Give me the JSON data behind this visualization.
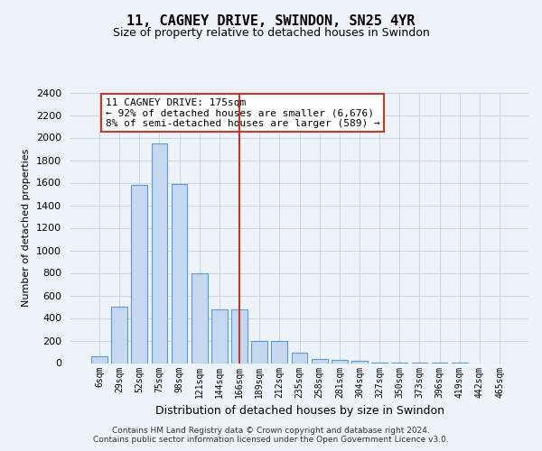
{
  "title": "11, CAGNEY DRIVE, SWINDON, SN25 4YR",
  "subtitle": "Size of property relative to detached houses in Swindon",
  "xlabel": "Distribution of detached houses by size in Swindon",
  "ylabel": "Number of detached properties",
  "categories": [
    "6sqm",
    "29sqm",
    "52sqm",
    "75sqm",
    "98sqm",
    "121sqm",
    "144sqm",
    "166sqm",
    "189sqm",
    "212sqm",
    "235sqm",
    "258sqm",
    "281sqm",
    "304sqm",
    "327sqm",
    "350sqm",
    "373sqm",
    "396sqm",
    "419sqm",
    "442sqm",
    "465sqm"
  ],
  "values": [
    60,
    500,
    1580,
    1950,
    1590,
    800,
    480,
    480,
    200,
    195,
    90,
    35,
    25,
    22,
    3,
    3,
    2,
    1,
    1,
    0,
    0
  ],
  "highlight_index": 7,
  "bar_color": "#c5d8f0",
  "bar_edge_color": "#5b9bd5",
  "highlight_line_color": "#c0392b",
  "annotation_text": "11 CAGNEY DRIVE: 175sqm\n← 92% of detached houses are smaller (6,676)\n8% of semi-detached houses are larger (589) →",
  "annotation_box_facecolor": "#ffffff",
  "annotation_box_edgecolor": "#c0392b",
  "ylim": [
    0,
    2400
  ],
  "yticks": [
    0,
    200,
    400,
    600,
    800,
    1000,
    1200,
    1400,
    1600,
    1800,
    2000,
    2200,
    2400
  ],
  "footer_text": "Contains HM Land Registry data © Crown copyright and database right 2024.\nContains public sector information licensed under the Open Government Licence v3.0.",
  "background_color": "#eef2f9",
  "grid_color": "#c8d0de",
  "title_fontsize": 11,
  "subtitle_fontsize": 9
}
